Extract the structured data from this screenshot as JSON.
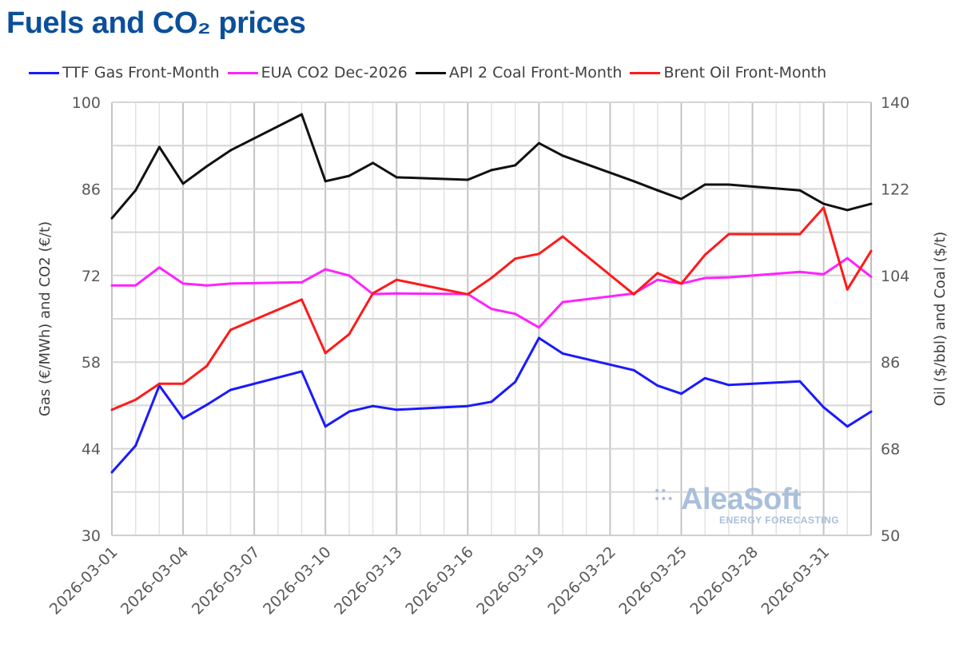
{
  "chart_data": {
    "type": "line",
    "title": "Fuels and CO₂ prices",
    "ylabel_left": "Gas (€/MWh) and CO2 (€/t)",
    "ylabel_right": "Oil ($/bbl) and Coal ($/t)",
    "ylim_left": [
      30,
      100
    ],
    "yticks_left": [
      30,
      44,
      58,
      72,
      86,
      100
    ],
    "ylim_right": [
      50,
      140
    ],
    "yticks_right": [
      50,
      68,
      86,
      104,
      122,
      140
    ],
    "xlim": [
      "2026-03-01",
      "2026-04-02"
    ],
    "xticks": [
      "2026-03-01",
      "2026-03-04",
      "2026-03-07",
      "2026-03-10",
      "2026-03-13",
      "2026-03-16",
      "2026-03-19",
      "2026-03-22",
      "2026-03-25",
      "2026-03-28",
      "2026-03-31"
    ],
    "grid": true,
    "legend": "top",
    "x": [
      "2026-03-01",
      "2026-03-02",
      "2026-03-03",
      "2026-03-04",
      "2026-03-05",
      "2026-03-06",
      "2026-03-09",
      "2026-03-10",
      "2026-03-11",
      "2026-03-12",
      "2026-03-13",
      "2026-03-16",
      "2026-03-17",
      "2026-03-18",
      "2026-03-19",
      "2026-03-20",
      "2026-03-23",
      "2026-03-24",
      "2026-03-25",
      "2026-03-26",
      "2026-03-27",
      "2026-03-30",
      "2026-03-31",
      "2026-04-01",
      "2026-04-02"
    ],
    "series": [
      {
        "name": "TTF Gas Front-Month",
        "axis": "left",
        "color": "#1a1aff",
        "values": [
          40.2,
          44.5,
          54.2,
          48.9,
          51.1,
          53.5,
          56.5,
          47.6,
          50.0,
          50.9,
          50.3,
          50.9,
          51.6,
          54.8,
          61.9,
          59.4,
          56.7,
          54.2,
          52.9,
          55.4,
          54.3,
          54.9,
          50.7,
          47.6,
          50.0
        ]
      },
      {
        "name": "EUA CO2 Dec-2026",
        "axis": "left",
        "color": "#ff22ff",
        "values": [
          70.4,
          70.4,
          73.3,
          70.7,
          70.4,
          70.7,
          70.9,
          73.0,
          72.0,
          69.0,
          69.1,
          69.0,
          66.6,
          65.8,
          63.6,
          67.7,
          69.1,
          71.3,
          70.7,
          71.6,
          71.7,
          72.6,
          72.2,
          74.8,
          71.8
        ]
      },
      {
        "name": "API 2 Coal Front-Month",
        "axis": "right",
        "color": "#111111",
        "values": [
          115.9,
          121.7,
          130.7,
          123.1,
          126.7,
          130.0,
          137.5,
          123.6,
          124.7,
          127.4,
          124.4,
          123.9,
          125.9,
          126.9,
          131.5,
          128.9,
          123.6,
          121.7,
          119.9,
          122.9,
          122.9,
          121.7,
          118.9,
          117.6,
          118.9
        ]
      },
      {
        "name": "Brent Oil Front-Month",
        "axis": "right",
        "color": "#ff1a1a",
        "values": [
          76.1,
          78.2,
          81.5,
          81.5,
          85.2,
          92.7,
          99.0,
          87.9,
          91.8,
          100.3,
          103.1,
          100.1,
          103.5,
          107.5,
          108.5,
          112.1,
          100.1,
          104.5,
          102.3,
          108.3,
          112.6,
          112.6,
          118.1,
          101.1,
          109.1
        ]
      }
    ]
  },
  "watermark": {
    "name": "AleaSoft",
    "tagline": "ENERGY FORECASTING"
  }
}
